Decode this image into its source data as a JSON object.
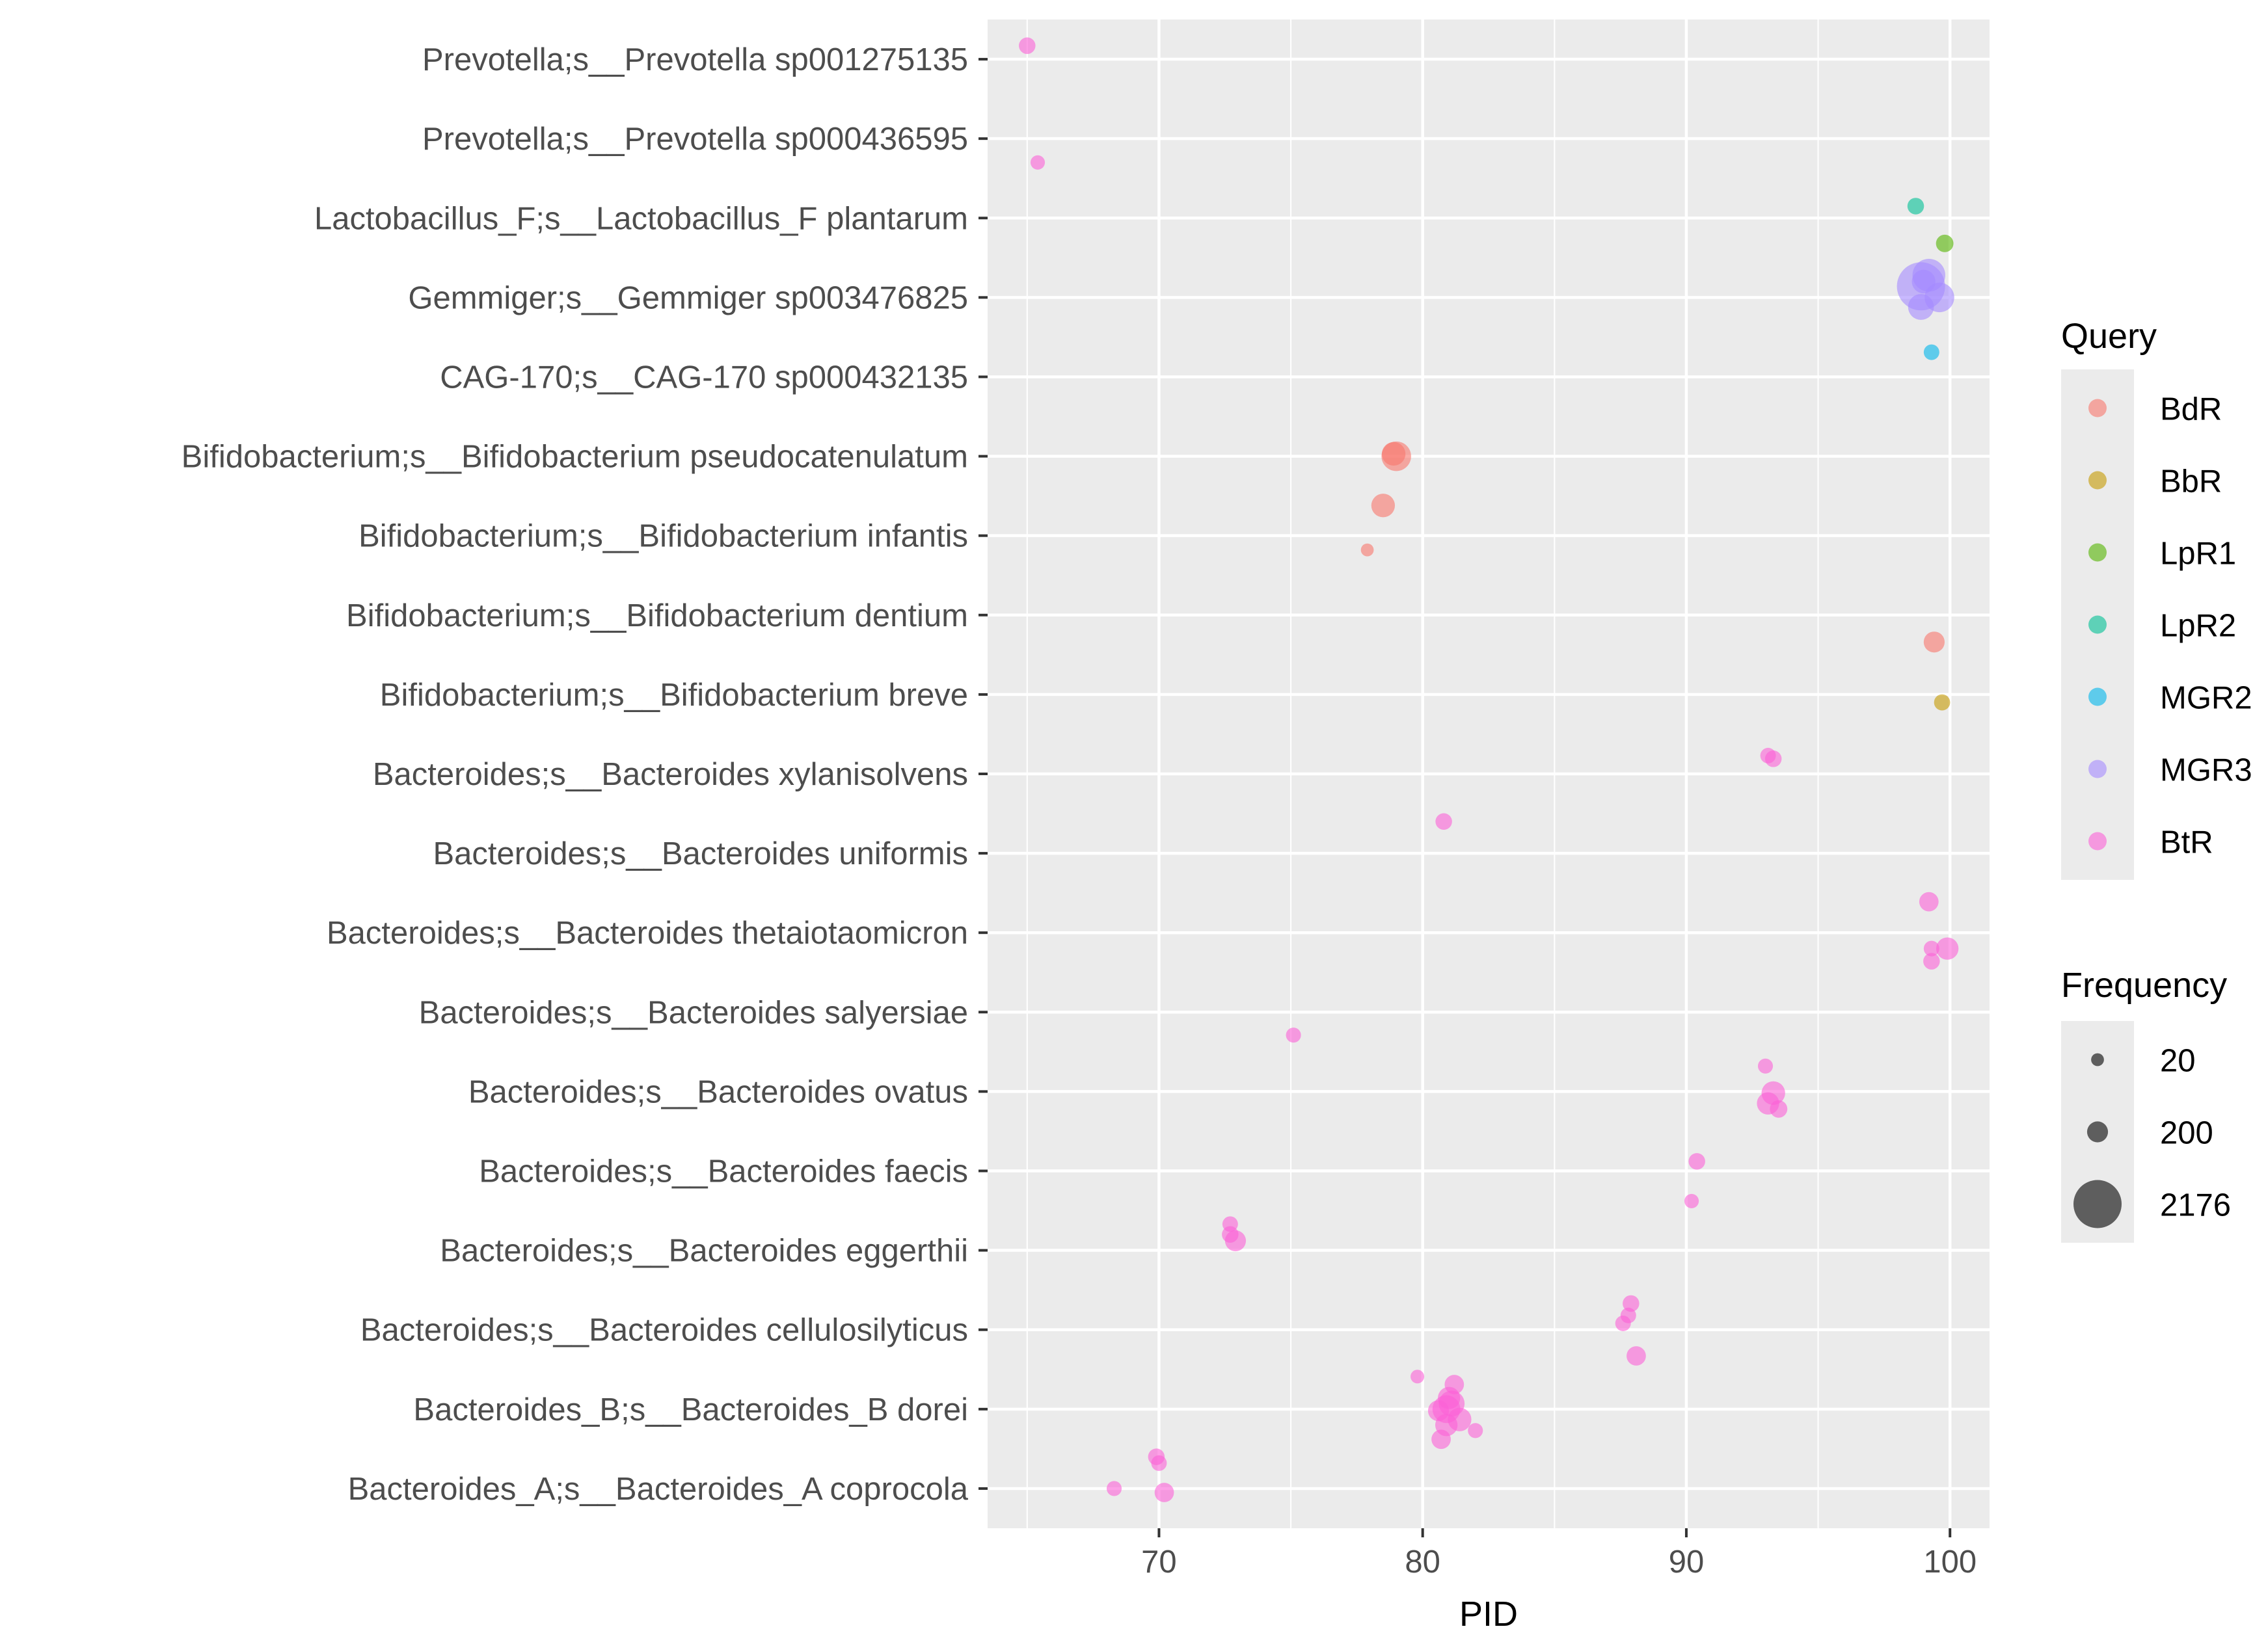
{
  "chart_data": {
    "type": "scatter",
    "title": "",
    "xlabel": "PID",
    "ylabel": "",
    "xlim": [
      63.5,
      101.5
    ],
    "x_ticks": [
      70,
      80,
      90,
      100
    ],
    "grid": true,
    "legend_position": "right",
    "categories": [
      "Bacteroides_A;s__Bacteroides_A coprocola",
      "Bacteroides_B;s__Bacteroides_B dorei",
      "Bacteroides;s__Bacteroides cellulosilyticus",
      "Bacteroides;s__Bacteroides eggerthii",
      "Bacteroides;s__Bacteroides faecis",
      "Bacteroides;s__Bacteroides ovatus",
      "Bacteroides;s__Bacteroides salyersiae",
      "Bacteroides;s__Bacteroides thetaiotaomicron",
      "Bacteroides;s__Bacteroides uniformis",
      "Bacteroides;s__Bacteroides xylanisolvens",
      "Bifidobacterium;s__Bifidobacterium breve",
      "Bifidobacterium;s__Bifidobacterium dentium",
      "Bifidobacterium;s__Bifidobacterium infantis",
      "Bifidobacterium;s__Bifidobacterium pseudocatenulatum",
      "CAG-170;s__CAG-170 sp000432135",
      "Gemmiger;s__Gemmiger sp003476825",
      "Lactobacillus_F;s__Lactobacillus_F plantarum",
      "Prevotella;s__Prevotella sp000436595",
      "Prevotella;s__Prevotella sp001275135"
    ],
    "query_legend": {
      "title": "Query",
      "entries": [
        {
          "name": "BdR",
          "color": "#F8766D"
        },
        {
          "name": "BbR",
          "color": "#C49A00"
        },
        {
          "name": "LpR1",
          "color": "#53B400"
        },
        {
          "name": "LpR2",
          "color": "#00C094"
        },
        {
          "name": "MGR2",
          "color": "#00B6EB"
        },
        {
          "name": "MGR3",
          "color": "#A58AFF"
        },
        {
          "name": "BtR",
          "color": "#FB61D7"
        }
      ]
    },
    "frequency_legend": {
      "title": "Frequency",
      "entries": [
        "20",
        "200",
        "2176"
      ],
      "values": [
        20,
        200,
        2176
      ]
    },
    "series": [
      {
        "name": "BdR",
        "points": [
          {
            "x": 79.0,
            "y": "Bifidobacterium;s__Bifidobacterium pseudocatenulatum",
            "jitter": 0.0,
            "freq": 600
          },
          {
            "x": 78.9,
            "y": "Bifidobacterium;s__Bifidobacterium pseudocatenulatum",
            "jitter": 0.03,
            "freq": 300
          },
          {
            "x": 78.5,
            "y": "Bifidobacterium;s__Bifidobacterium infantis",
            "jitter": 0.38,
            "freq": 300
          },
          {
            "x": 77.9,
            "y": "Bifidobacterium;s__Bifidobacterium infantis",
            "jitter": -0.18,
            "freq": 20
          },
          {
            "x": 99.4,
            "y": "Bifidobacterium;s__Bifidobacterium dentium",
            "jitter": -0.34,
            "freq": 200
          }
        ]
      },
      {
        "name": "BbR",
        "points": [
          {
            "x": 99.7,
            "y": "Bifidobacterium;s__Bifidobacterium breve",
            "jitter": -0.1,
            "freq": 70
          }
        ]
      },
      {
        "name": "LpR1",
        "points": [
          {
            "x": 99.8,
            "y": "Lactobacillus_F;s__Lactobacillus_F plantarum",
            "jitter": -0.32,
            "freq": 100
          }
        ]
      },
      {
        "name": "LpR2",
        "points": [
          {
            "x": 98.7,
            "y": "Lactobacillus_F;s__Lactobacillus_F plantarum",
            "jitter": 0.15,
            "freq": 80
          }
        ]
      },
      {
        "name": "MGR2",
        "points": [
          {
            "x": 99.3,
            "y": "CAG-170;s__CAG-170 sp000432135",
            "jitter": 0.31,
            "freq": 60
          }
        ]
      },
      {
        "name": "MGR3",
        "points": [
          {
            "x": 98.9,
            "y": "Gemmiger;s__Gemmiger sp003476825",
            "jitter": 0.14,
            "freq": 2176
          },
          {
            "x": 99.2,
            "y": "Gemmiger;s__Gemmiger sp003476825",
            "jitter": 0.28,
            "freq": 800
          },
          {
            "x": 99.6,
            "y": "Gemmiger;s__Gemmiger sp003476825",
            "jitter": 0.0,
            "freq": 600
          },
          {
            "x": 98.9,
            "y": "Gemmiger;s__Gemmiger sp003476825",
            "jitter": -0.12,
            "freq": 400
          },
          {
            "x": 99.0,
            "y": "Gemmiger;s__Gemmiger sp003476825",
            "jitter": 0.2,
            "freq": 300
          }
        ]
      },
      {
        "name": "BtR",
        "points": [
          {
            "x": 65.0,
            "y": "Prevotella;s__Prevotella sp001275135",
            "jitter": 0.17,
            "freq": 80
          },
          {
            "x": 65.4,
            "y": "Prevotella;s__Prevotella sp000436595",
            "jitter": -0.3,
            "freq": 40
          },
          {
            "x": 93.1,
            "y": "Bacteroides;s__Bacteroides xylanisolvens",
            "jitter": 0.23,
            "freq": 60
          },
          {
            "x": 93.3,
            "y": "Bacteroides;s__Bacteroides xylanisolvens",
            "jitter": 0.19,
            "freq": 80
          },
          {
            "x": 80.8,
            "y": "Bacteroides;s__Bacteroides uniformis",
            "jitter": 0.4,
            "freq": 80
          },
          {
            "x": 99.2,
            "y": "Bacteroides;s__Bacteroides thetaiotaomicron",
            "jitter": 0.39,
            "freq": 150
          },
          {
            "x": 99.9,
            "y": "Bacteroides;s__Bacteroides thetaiotaomicron",
            "jitter": -0.2,
            "freq": 250
          },
          {
            "x": 99.3,
            "y": "Bacteroides;s__Bacteroides thetaiotaomicron",
            "jitter": -0.2,
            "freq": 60
          },
          {
            "x": 99.3,
            "y": "Bacteroides;s__Bacteroides thetaiotaomicron",
            "jitter": -0.36,
            "freq": 80
          },
          {
            "x": 75.1,
            "y": "Bacteroides;s__Bacteroides salyersiae",
            "jitter": -0.29,
            "freq": 50
          },
          {
            "x": 93.0,
            "y": "Bacteroides;s__Bacteroides ovatus",
            "jitter": 0.32,
            "freq": 50
          },
          {
            "x": 93.3,
            "y": "Bacteroides;s__Bacteroides ovatus",
            "jitter": -0.02,
            "freq": 300
          },
          {
            "x": 93.1,
            "y": "Bacteroides;s__Bacteroides ovatus",
            "jitter": -0.15,
            "freq": 250
          },
          {
            "x": 93.5,
            "y": "Bacteroides;s__Bacteroides ovatus",
            "jitter": -0.22,
            "freq": 100
          },
          {
            "x": 90.4,
            "y": "Bacteroides;s__Bacteroides faecis",
            "jitter": 0.12,
            "freq": 80
          },
          {
            "x": 90.2,
            "y": "Bacteroides;s__Bacteroides faecis",
            "jitter": -0.38,
            "freq": 40
          },
          {
            "x": 72.7,
            "y": "Bacteroides;s__Bacteroides eggerthii",
            "jitter": 0.33,
            "freq": 60
          },
          {
            "x": 72.7,
            "y": "Bacteroides;s__Bacteroides eggerthii",
            "jitter": 0.2,
            "freq": 80
          },
          {
            "x": 72.9,
            "y": "Bacteroides;s__Bacteroides eggerthii",
            "jitter": 0.12,
            "freq": 200
          },
          {
            "x": 87.9,
            "y": "Bacteroides;s__Bacteroides cellulosilyticus",
            "jitter": 0.33,
            "freq": 80
          },
          {
            "x": 87.8,
            "y": "Bacteroides;s__Bacteroides cellulosilyticus",
            "jitter": 0.18,
            "freq": 60
          },
          {
            "x": 87.6,
            "y": "Bacteroides;s__Bacteroides cellulosilyticus",
            "jitter": 0.08,
            "freq": 60
          },
          {
            "x": 88.1,
            "y": "Bacteroides;s__Bacteroides cellulosilyticus",
            "jitter": -0.33,
            "freq": 150
          },
          {
            "x": 79.8,
            "y": "Bacteroides_B;s__Bacteroides_B dorei",
            "jitter": 0.41,
            "freq": 30
          },
          {
            "x": 81.2,
            "y": "Bacteroides_B;s__Bacteroides_B dorei",
            "jitter": 0.31,
            "freq": 150
          },
          {
            "x": 81.0,
            "y": "Bacteroides_B;s__Bacteroides_B dorei",
            "jitter": 0.14,
            "freq": 250
          },
          {
            "x": 80.9,
            "y": "Bacteroides_B;s__Bacteroides_B dorei",
            "jitter": 0.0,
            "freq": 500
          },
          {
            "x": 81.1,
            "y": "Bacteroides_B;s__Bacteroides_B dorei",
            "jitter": 0.07,
            "freq": 400
          },
          {
            "x": 80.6,
            "y": "Bacteroides_B;s__Bacteroides_B dorei",
            "jitter": -0.02,
            "freq": 200
          },
          {
            "x": 81.4,
            "y": "Bacteroides_B;s__Bacteroides_B dorei",
            "jitter": -0.13,
            "freq": 300
          },
          {
            "x": 80.9,
            "y": "Bacteroides_B;s__Bacteroides_B dorei",
            "jitter": -0.2,
            "freq": 250
          },
          {
            "x": 80.7,
            "y": "Bacteroides_B;s__Bacteroides_B dorei",
            "jitter": -0.38,
            "freq": 150
          },
          {
            "x": 82.0,
            "y": "Bacteroides_B;s__Bacteroides_B dorei",
            "jitter": -0.27,
            "freq": 50
          },
          {
            "x": 69.9,
            "y": "Bacteroides_A;s__Bacteroides_A coprocola",
            "jitter": 0.4,
            "freq": 80
          },
          {
            "x": 70.0,
            "y": "Bacteroides_A;s__Bacteroides_A coprocola",
            "jitter": 0.32,
            "freq": 60
          },
          {
            "x": 68.3,
            "y": "Bacteroides_A;s__Bacteroides_A coprocola",
            "jitter": 0.0,
            "freq": 50
          },
          {
            "x": 70.2,
            "y": "Bacteroides_A;s__Bacteroides_A coprocola",
            "jitter": -0.05,
            "freq": 150
          }
        ]
      }
    ]
  }
}
